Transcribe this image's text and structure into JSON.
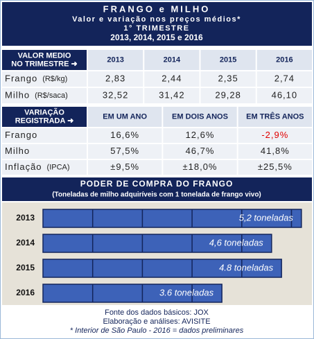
{
  "header": {
    "title": "FRANGO e MILHO",
    "subtitle": "Valor e variação nos preços médios*",
    "period": "1° TRIMESTRE",
    "years": "2013, 2014, 2015 e 2016"
  },
  "prices_table": {
    "corner": [
      "VALOR MEDIO",
      "NO TRIMESTRE ➜"
    ],
    "columns": [
      "2013",
      "2014",
      "2015",
      "2016"
    ],
    "rows": [
      {
        "label": "Frango",
        "unit": "(R$/kg)",
        "cells": [
          "2,83",
          "2,44",
          "2,35",
          "2,74"
        ]
      },
      {
        "label": "Milho",
        "unit": "(R$/saca)",
        "cells": [
          "32,52",
          "31,42",
          "29,28",
          "46,10"
        ]
      }
    ]
  },
  "variation_table": {
    "corner": [
      "VARIAÇÃO",
      "REGISTRADA ➜"
    ],
    "columns": [
      "EM UM ANO",
      "EM DOIS ANOS",
      "EM TRÊS ANOS"
    ],
    "rows": [
      {
        "label": "Frango",
        "cells": [
          "16,6%",
          "12,6%",
          "-2,9%"
        ]
      },
      {
        "label": "Milho",
        "cells": [
          "57,5%",
          "46,7%",
          "41,8%"
        ]
      },
      {
        "label": "Inflação",
        "unit": "(IPCA)",
        "cells": [
          "±9,5%",
          "±18,0%",
          "±25,5%"
        ]
      }
    ]
  },
  "chart_data": {
    "type": "bar",
    "orientation": "horizontal",
    "title": "PODER DE COMPRA DO FRANGO",
    "subtitle": "(Toneladas de milho adquiríveis com 1 tonelada de frango vivo)",
    "categories": [
      "2013",
      "2014",
      "2015",
      "2016"
    ],
    "values": [
      5.2,
      4.6,
      4.8,
      3.6
    ],
    "value_labels": [
      "5,2 toneladas",
      "4,6 toneladas",
      "4.8 toneladas",
      "3.6 toneladas"
    ],
    "color": "#3d62b8"
  },
  "footer": [
    "Fonte dos dados básicos: JOX",
    "Elaboração e análises: AVISITE",
    "* Interior de São Paulo  -  2016 = dados preliminares"
  ]
}
